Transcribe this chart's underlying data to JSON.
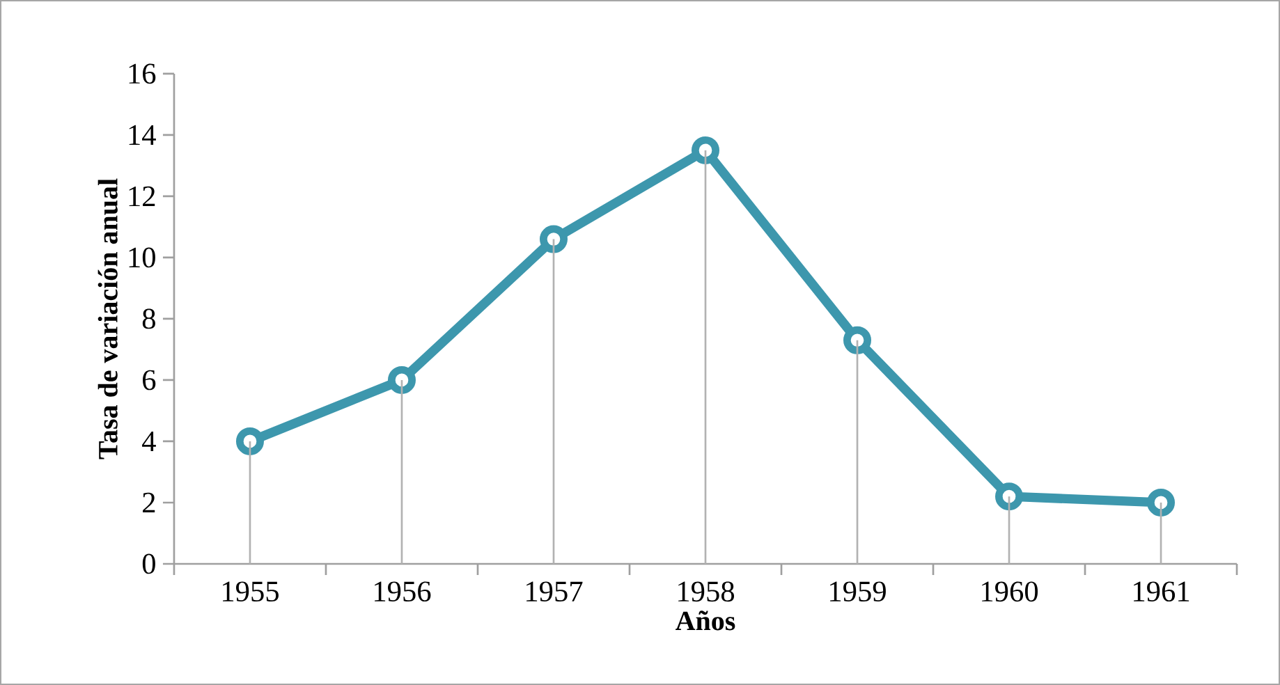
{
  "chart_data": {
    "type": "line",
    "xlabel": "Años",
    "ylabel": "Tasa de variación anual",
    "categories": [
      "1955",
      "1956",
      "1957",
      "1958",
      "1959",
      "1960",
      "1961"
    ],
    "series": [
      {
        "color": "#3d97ad",
        "values": [
          4.0,
          6.0,
          10.6,
          13.5,
          7.3,
          2.2,
          2.0
        ]
      },
      {
        "type": "bar",
        "color": "#b2b2b2",
        "values": [
          4.0,
          6.0,
          10.6,
          13.5,
          7.3,
          2.2,
          2.0
        ]
      }
    ],
    "ylim": [
      0,
      16
    ],
    "yticks": [
      0,
      2,
      4,
      6,
      8,
      10,
      12,
      14,
      16
    ],
    "marker": "circle",
    "line_style": "solid"
  }
}
